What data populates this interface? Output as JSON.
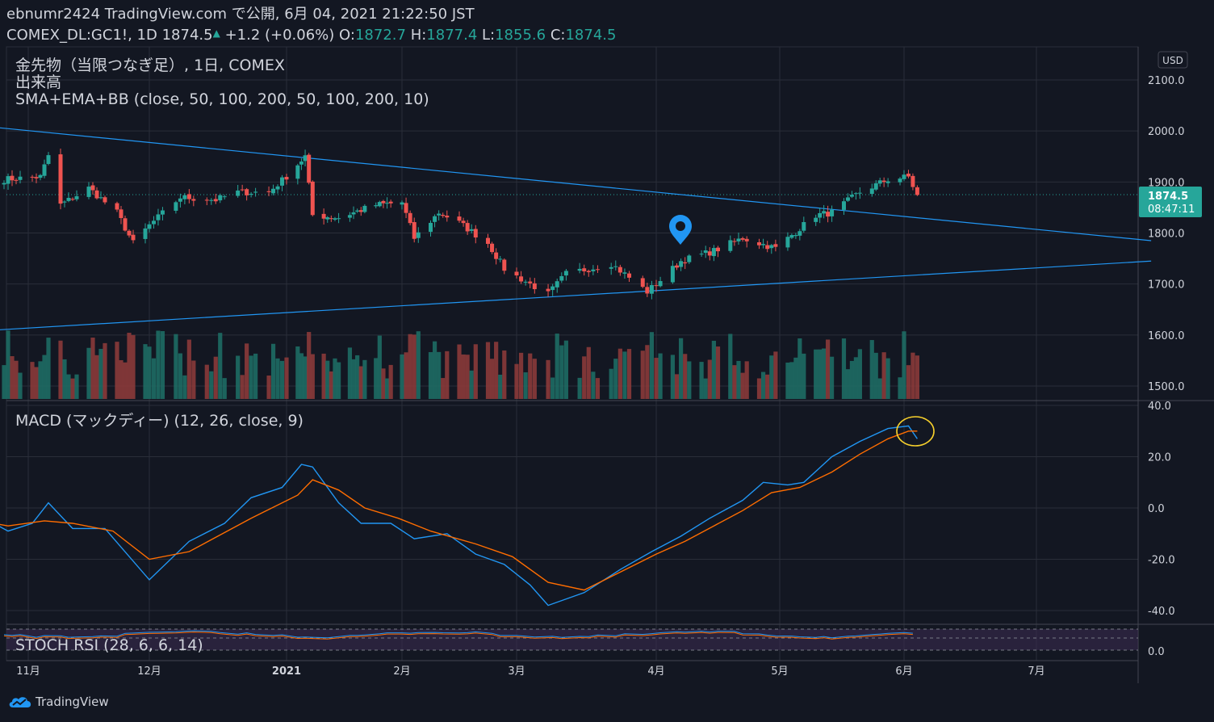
{
  "header": {
    "line1": "ebnumr2424 TradingView.com で公開, 6月 04, 2021 21:22:50 JST",
    "symbol": "COMEX_DL:GC1!, 1D",
    "last": "1874.5",
    "up_arrow": "▲",
    "change": "+1.2 (+0.06%)",
    "o_label": "O:",
    "o_value": "1872.7",
    "h_label": "H:",
    "h_value": "1877.4",
    "l_label": "L:",
    "l_value": "1855.6",
    "c_label": "C:",
    "c_value": "1874.5"
  },
  "legend": {
    "line1": "金先物（当限つなぎ足）, 1日, COMEX",
    "line2": "出来高",
    "line3": "SMA+EMA+BB (close, 50, 100, 200, 50, 100, 200, 10)"
  },
  "currency": "USD",
  "price_label": {
    "value": "1874.5",
    "countdown": "08:47:11"
  },
  "macd_label": "MACD (マックディー) (12, 26, close, 9)",
  "stoch_label": "STOCH RSI (28, 6, 6, 14)",
  "brand": "TradingView",
  "colors": {
    "up": "#26a69a",
    "down": "#ef5350",
    "macd": "#2196f3",
    "signal": "#ff6d00",
    "trend": "#2196f3",
    "circle": "#f7d02c",
    "marker": "#2196f3"
  },
  "chart_data": [
    {
      "type": "candlestick",
      "title": "金先物（当限つなぎ足）, 1日, COMEX",
      "ylabel": "USD",
      "ylim": [
        1480,
        2140
      ],
      "y_ticks": [
        1500,
        1600,
        1700,
        1800,
        1900,
        2000,
        2100
      ],
      "x_ticks": [
        "11月",
        "12月",
        "2021",
        "2月",
        "3月",
        "4月",
        "5月",
        "6月",
        "7月"
      ],
      "x_tick_dates": [
        "2020-11-01",
        "2020-12-01",
        "2021-01-01",
        "2021-02-01",
        "2021-03-01",
        "2021-04-01",
        "2021-05-01",
        "2021-06-01",
        "2021-07-01"
      ],
      "last_price": 1874.5,
      "anchor_closes": [
        [
          "2020-10-26",
          1905
        ],
        [
          "2020-11-04",
          1910
        ],
        [
          "2020-11-06",
          1952
        ],
        [
          "2020-11-09",
          1855
        ],
        [
          "2020-11-16",
          1888
        ],
        [
          "2020-11-23",
          1840
        ],
        [
          "2020-11-27",
          1780
        ],
        [
          "2020-12-01",
          1815
        ],
        [
          "2020-12-08",
          1870
        ],
        [
          "2020-12-16",
          1865
        ],
        [
          "2020-12-21",
          1880
        ],
        [
          "2020-12-28",
          1880
        ],
        [
          "2021-01-06",
          1950
        ],
        [
          "2021-01-08",
          1835
        ],
        [
          "2021-01-15",
          1830
        ],
        [
          "2021-01-25",
          1855
        ],
        [
          "2021-02-01",
          1860
        ],
        [
          "2021-02-04",
          1790
        ],
        [
          "2021-02-10",
          1840
        ],
        [
          "2021-02-15",
          1820
        ],
        [
          "2021-02-22",
          1780
        ],
        [
          "2021-02-26",
          1730
        ],
        [
          "2021-03-08",
          1680
        ],
        [
          "2021-03-12",
          1720
        ],
        [
          "2021-03-22",
          1740
        ],
        [
          "2021-03-30",
          1685
        ],
        [
          "2021-04-07",
          1745
        ],
        [
          "2021-04-15",
          1765
        ],
        [
          "2021-04-22",
          1790
        ],
        [
          "2021-04-30",
          1770
        ],
        [
          "2021-05-10",
          1835
        ],
        [
          "2021-05-14",
          1840
        ],
        [
          "2021-05-21",
          1880
        ],
        [
          "2021-05-28",
          1905
        ],
        [
          "2021-06-02",
          1910
        ],
        [
          "2021-06-04",
          1874.5
        ]
      ],
      "trendlines": [
        {
          "name": "upper",
          "points": [
            [
              "2020-10-20",
              2010
            ],
            [
              "2021-01-06",
              1952
            ],
            [
              "2021-07-27",
              1785
            ]
          ]
        },
        {
          "name": "lower",
          "points": [
            [
              "2020-10-20",
              1608
            ],
            [
              "2021-03-08",
              1675
            ],
            [
              "2021-07-27",
              1745
            ]
          ]
        }
      ]
    },
    {
      "type": "bar",
      "title": "出来高",
      "note": "volume bars, relative height only"
    },
    {
      "type": "line",
      "title": "MACD (マックディー) (12, 26, close, 9)",
      "ylim": [
        -45,
        42
      ],
      "y_ticks": [
        -40,
        -20,
        0,
        20,
        40
      ],
      "series": [
        {
          "name": "MACD",
          "points": [
            [
              "2020-10-20",
              -3
            ],
            [
              "2020-10-27",
              -9
            ],
            [
              "2020-11-02",
              -6
            ],
            [
              "2020-11-06",
              2
            ],
            [
              "2020-11-12",
              -8
            ],
            [
              "2020-11-20",
              -8
            ],
            [
              "2020-12-01",
              -28
            ],
            [
              "2020-12-10",
              -13
            ],
            [
              "2020-12-18",
              -6
            ],
            [
              "2020-12-24",
              4
            ],
            [
              "2020-12-31",
              8
            ],
            [
              "2021-01-05",
              17
            ],
            [
              "2021-01-08",
              16
            ],
            [
              "2021-01-15",
              2
            ],
            [
              "2021-01-21",
              -6
            ],
            [
              "2021-01-29",
              -6
            ],
            [
              "2021-02-04",
              -12
            ],
            [
              "2021-02-12",
              -10
            ],
            [
              "2021-02-19",
              -18
            ],
            [
              "2021-02-26",
              -22
            ],
            [
              "2021-03-04",
              -30
            ],
            [
              "2021-03-08",
              -38
            ],
            [
              "2021-03-16",
              -33
            ],
            [
              "2021-03-24",
              -24
            ],
            [
              "2021-03-31",
              -17
            ],
            [
              "2021-04-07",
              -11
            ],
            [
              "2021-04-14",
              -4
            ],
            [
              "2021-04-22",
              3
            ],
            [
              "2021-04-27",
              10
            ],
            [
              "2021-05-03",
              9
            ],
            [
              "2021-05-07",
              10
            ],
            [
              "2021-05-14",
              20
            ],
            [
              "2021-05-21",
              26
            ],
            [
              "2021-05-28",
              31
            ],
            [
              "2021-06-02",
              32
            ],
            [
              "2021-06-04",
              27
            ]
          ]
        },
        {
          "name": "Signal",
          "points": [
            [
              "2020-10-20",
              -5
            ],
            [
              "2020-10-27",
              -7
            ],
            [
              "2020-11-05",
              -5
            ],
            [
              "2020-11-12",
              -6
            ],
            [
              "2020-11-22",
              -9
            ],
            [
              "2020-12-01",
              -20
            ],
            [
              "2020-12-10",
              -17
            ],
            [
              "2020-12-24",
              -4
            ],
            [
              "2021-01-04",
              5
            ],
            [
              "2021-01-08",
              11
            ],
            [
              "2021-01-15",
              7
            ],
            [
              "2021-01-22",
              0
            ],
            [
              "2021-01-31",
              -4
            ],
            [
              "2021-02-08",
              -9
            ],
            [
              "2021-02-19",
              -14
            ],
            [
              "2021-02-28",
              -19
            ],
            [
              "2021-03-08",
              -29
            ],
            [
              "2021-03-16",
              -32
            ],
            [
              "2021-03-24",
              -25
            ],
            [
              "2021-04-01",
              -18
            ],
            [
              "2021-04-08",
              -13
            ],
            [
              "2021-04-15",
              -7
            ],
            [
              "2021-04-22",
              -1
            ],
            [
              "2021-04-29",
              6
            ],
            [
              "2021-05-06",
              8
            ],
            [
              "2021-05-14",
              14
            ],
            [
              "2021-05-21",
              21
            ],
            [
              "2021-05-28",
              27
            ],
            [
              "2021-06-02",
              30
            ],
            [
              "2021-06-04",
              30
            ]
          ]
        }
      ]
    },
    {
      "type": "line",
      "title": "STOCH RSI (28, 6, 6, 14)",
      "y_ticks": [
        0
      ]
    }
  ]
}
